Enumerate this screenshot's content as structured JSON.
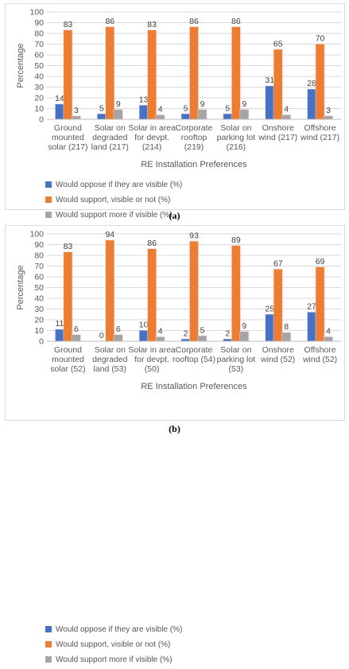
{
  "colors": {
    "oppose": "#4472c4",
    "support": "#ed7d31",
    "support_more": "#a5a5a5",
    "highlight": "#f5cfe0",
    "grid": "#d9d9d9",
    "axis_text": "#595959",
    "label_text": "#404040"
  },
  "chart_data": [
    {
      "type": "bar",
      "panel": "(a)",
      "xlabel": "RE Installation Preferences",
      "ylabel": "Percentage",
      "ylim": [
        0,
        100
      ],
      "yticks": [
        0,
        10,
        20,
        30,
        40,
        50,
        60,
        70,
        80,
        90,
        100
      ],
      "grid": true,
      "legend_position": "bottom",
      "categories": [
        [
          "Ground",
          "mounted",
          "solar (217)"
        ],
        [
          "Solar on",
          "degraded",
          "land (217)"
        ],
        [
          "Solar in area",
          "for devpt.",
          "(214)"
        ],
        [
          "Corporate",
          "rooftop",
          "(219)"
        ],
        [
          "Solar on",
          "parking lot",
          "(216)"
        ],
        [
          "Onshore",
          "wind (217)"
        ],
        [
          "Offshore",
          "wind (217)"
        ]
      ],
      "series": [
        {
          "name": "Would oppose if they are visible (%)",
          "values": [
            14,
            5,
            13,
            5,
            5,
            31,
            28
          ]
        },
        {
          "name": "Would support, visible or not (%)",
          "values": [
            83,
            86,
            83,
            86,
            86,
            65,
            70
          ]
        },
        {
          "name": "Would support more if visible (%)",
          "values": [
            3,
            9,
            4,
            9,
            9,
            4,
            3
          ]
        }
      ]
    },
    {
      "type": "bar",
      "panel": "(b)",
      "xlabel": "RE Installation Preferences",
      "ylabel": "Percentage",
      "ylim": [
        0,
        100
      ],
      "yticks": [
        0,
        10,
        20,
        30,
        40,
        50,
        60,
        70,
        80,
        90,
        100
      ],
      "grid": true,
      "legend_position": "bottom",
      "categories": [
        [
          "Ground",
          "mounted",
          "solar (52)"
        ],
        [
          "Solar on",
          "degraded",
          "land (53)"
        ],
        [
          "Solar in area",
          "for devpt.",
          "(50)"
        ],
        [
          "Corporate",
          "rooftop (54)"
        ],
        [
          "Solar on",
          "parking lot",
          "(53)"
        ],
        [
          "Onshore",
          "wind (52)"
        ],
        [
          "Offshore",
          "wind (52)"
        ]
      ],
      "series": [
        {
          "name": "Would oppose if they are visible (%)",
          "values": [
            11,
            0,
            10,
            2,
            2,
            25,
            27
          ]
        },
        {
          "name": "Would support, visible or not (%)",
          "values": [
            83,
            94,
            86,
            93,
            89,
            67,
            69
          ]
        },
        {
          "name": "Would support more if visible (%)",
          "values": [
            6,
            6,
            4,
            5,
            9,
            8,
            4
          ]
        }
      ]
    }
  ],
  "captions": {
    "a": "(a)",
    "b": "(b)"
  }
}
